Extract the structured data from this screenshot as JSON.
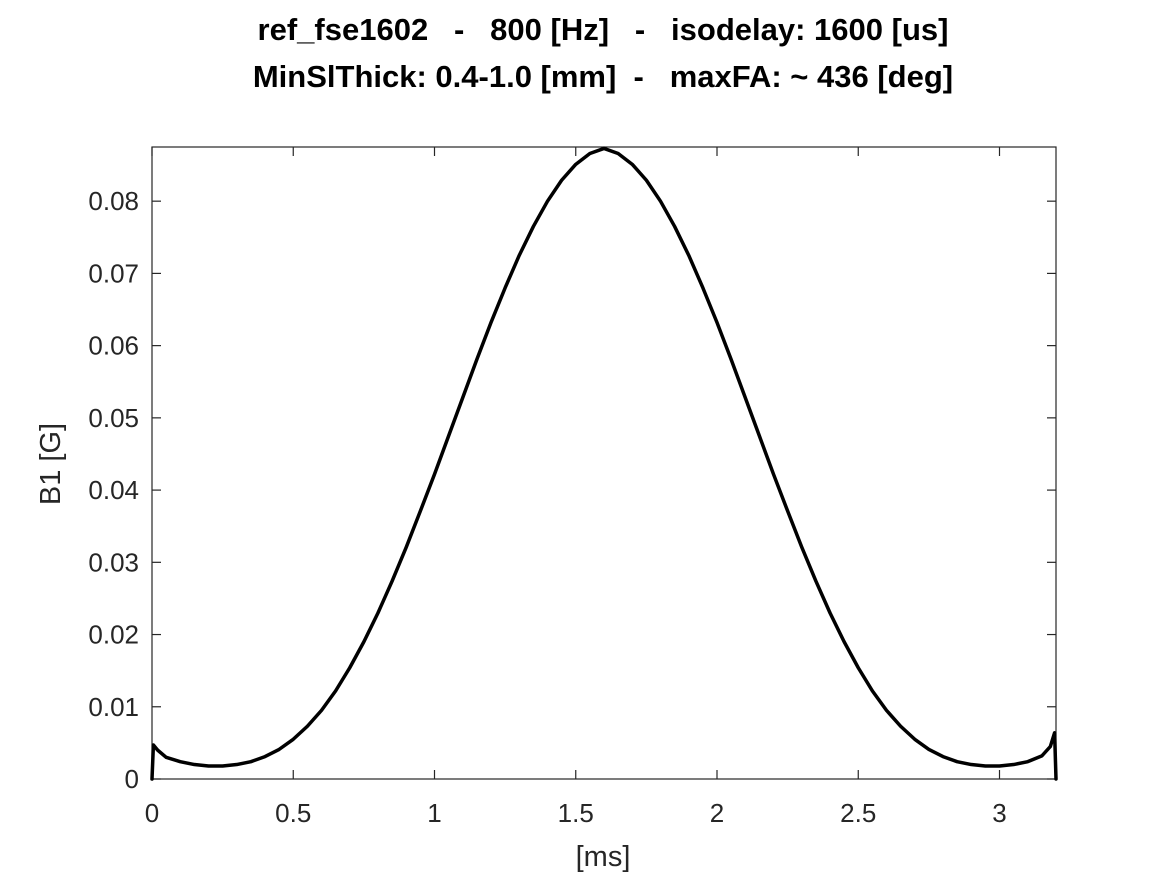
{
  "chart_data": {
    "type": "line",
    "title": "ref_fse1602   -   800 [Hz]   -   isodelay: 1600 [us]",
    "subtitle": "MinSlThick: 0.4-1.0 [mm]  -   maxFA: ~ 436 [deg]",
    "xlabel": "[ms]",
    "ylabel": "B1 [G]",
    "xlim": [
      0,
      3.2
    ],
    "ylim": [
      0,
      0.0875
    ],
    "xticks": [
      0,
      0.5,
      1,
      1.5,
      2,
      2.5,
      3
    ],
    "xtick_labels": [
      "0",
      "0.5",
      "1",
      "1.5",
      "2",
      "2.5",
      "3"
    ],
    "yticks": [
      0,
      0.01,
      0.02,
      0.03,
      0.04,
      0.05,
      0.06,
      0.07,
      0.08
    ],
    "ytick_labels": [
      "0",
      "0.01",
      "0.02",
      "0.03",
      "0.04",
      "0.05",
      "0.06",
      "0.07",
      "0.08"
    ],
    "grid": false,
    "line_color": "#000000",
    "series": [
      {
        "x": [
          0,
          0.005,
          0.02,
          0.05,
          0.1,
          0.15,
          0.2,
          0.25,
          0.3,
          0.35,
          0.4,
          0.45,
          0.5,
          0.55,
          0.6,
          0.65,
          0.7,
          0.75,
          0.8,
          0.85,
          0.9,
          0.95,
          1.0,
          1.05,
          1.1,
          1.15,
          1.2,
          1.25,
          1.3,
          1.35,
          1.4,
          1.45,
          1.5,
          1.55,
          1.6,
          1.65,
          1.7,
          1.75,
          1.8,
          1.85,
          1.9,
          1.95,
          2.0,
          2.05,
          2.1,
          2.15,
          2.2,
          2.25,
          2.3,
          2.35,
          2.4,
          2.45,
          2.5,
          2.55,
          2.6,
          2.65,
          2.7,
          2.75,
          2.8,
          2.85,
          2.9,
          2.95,
          3.0,
          3.05,
          3.1,
          3.15,
          3.18,
          3.195,
          3.2
        ],
        "values": [
          0,
          0.0047,
          0.004,
          0.003,
          0.0024,
          0.002,
          0.0018,
          0.0018,
          0.002,
          0.0024,
          0.0031,
          0.0041,
          0.0055,
          0.0073,
          0.0095,
          0.0122,
          0.0154,
          0.019,
          0.023,
          0.0274,
          0.0321,
          0.0371,
          0.0422,
          0.0475,
          0.0528,
          0.0581,
          0.0632,
          0.068,
          0.0725,
          0.0765,
          0.08,
          0.0829,
          0.0851,
          0.0866,
          0.0873,
          0.0866,
          0.0851,
          0.0829,
          0.08,
          0.0765,
          0.0725,
          0.068,
          0.0632,
          0.0581,
          0.0528,
          0.0475,
          0.0422,
          0.0371,
          0.0321,
          0.0274,
          0.023,
          0.019,
          0.0154,
          0.0122,
          0.0095,
          0.0073,
          0.0055,
          0.0041,
          0.0031,
          0.0024,
          0.002,
          0.0018,
          0.0018,
          0.002,
          0.0024,
          0.0032,
          0.0045,
          0.0064,
          0
        ]
      }
    ]
  }
}
